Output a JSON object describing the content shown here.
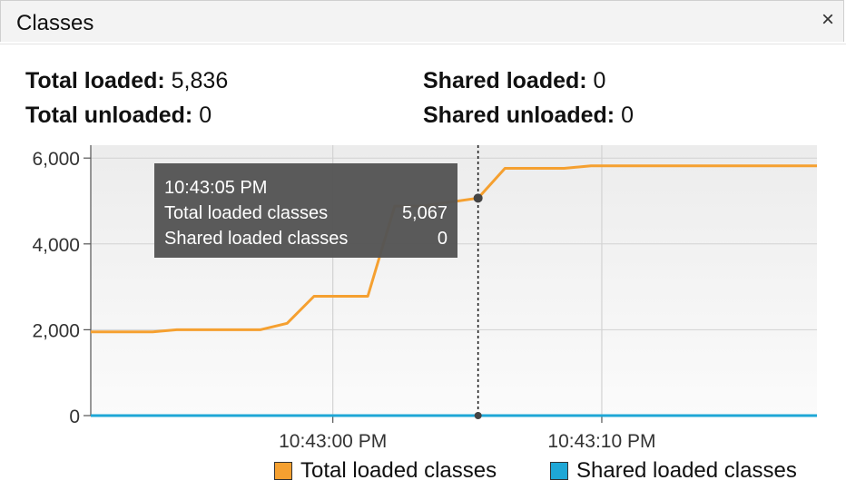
{
  "panel": {
    "title": "Classes",
    "close_glyph": "×"
  },
  "stats": {
    "total_loaded_label": "Total loaded:",
    "total_loaded_value": "5,836",
    "total_unloaded_label": "Total unloaded:",
    "total_unloaded_value": "0",
    "shared_loaded_label": "Shared loaded:",
    "shared_loaded_value": "0",
    "shared_unloaded_label": "Shared unloaded:",
    "shared_unloaded_value": "0"
  },
  "tooltip": {
    "time": "10:43:05 PM",
    "rows": [
      {
        "label": "Total loaded classes",
        "value": "5,067"
      },
      {
        "label": "Shared loaded classes",
        "value": "0"
      }
    ]
  },
  "colors": {
    "total": "#f5a030",
    "shared": "#1ea7d6",
    "tooltip_bg": "#555555"
  },
  "chart_data": {
    "type": "line",
    "yticks": [
      "6,000",
      "4,000",
      "2,000",
      "0"
    ],
    "ytick_values": [
      6000,
      4000,
      2000,
      0
    ],
    "xticks": [
      {
        "label": "10:43:00 PM",
        "t": 0
      },
      {
        "label": "10:43:10 PM",
        "t": 10
      }
    ],
    "ylim": [
      0,
      6300
    ],
    "xlim": [
      -9,
      18
    ],
    "hover_t": 5.4,
    "series": [
      {
        "name": "Total loaded classes",
        "color": "#f5a030",
        "x": [
          -9,
          -6.7,
          -5.8,
          -2.7,
          -1.7,
          -0.7,
          1.3,
          2.3,
          3.3,
          5.4,
          6.4,
          8.6,
          9.6,
          18
        ],
        "y": [
          1950,
          1950,
          2000,
          2000,
          2150,
          2780,
          2780,
          4880,
          4880,
          5067,
          5760,
          5760,
          5820,
          5820
        ]
      },
      {
        "name": "Shared loaded classes",
        "color": "#1ea7d6",
        "x": [
          -9,
          18
        ],
        "y": [
          0,
          0
        ]
      }
    ]
  }
}
